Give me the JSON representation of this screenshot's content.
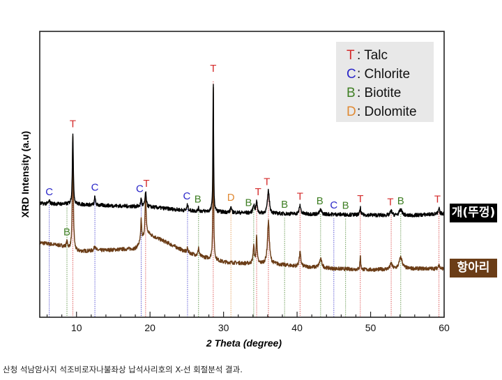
{
  "chart_data": {
    "type": "line",
    "xlabel": "2 Theta (degree)",
    "ylabel": "XRD Intensity (a.u)",
    "xlim": [
      5,
      60
    ],
    "ylim": [
      0,
      100
    ],
    "xticks": [
      10,
      20,
      30,
      40,
      50,
      60
    ],
    "grid": false,
    "legend": {
      "position": "top-right",
      "entries": [
        {
          "code": "T",
          "name": ": Talc",
          "color": "#d42a2a"
        },
        {
          "code": "C",
          "name": ": Chlorite",
          "color": "#2a26c8"
        },
        {
          "code": "B",
          "name": ": Biotite",
          "color": "#3f7f24"
        },
        {
          "code": "D",
          "name": ": Dolomite",
          "color": "#e08a34"
        }
      ]
    },
    "series": [
      {
        "name": "개(뚜껑)",
        "color": "#000000",
        "baseline": [
          [
            5,
            39.8
          ],
          [
            10,
            39.5
          ],
          [
            15,
            39
          ],
          [
            20,
            38.6
          ],
          [
            25,
            37.3
          ],
          [
            30,
            36.8
          ],
          [
            35,
            36.3
          ],
          [
            45,
            36
          ],
          [
            55,
            35.5
          ],
          [
            60,
            36.3
          ]
        ],
        "peaks": [
          [
            6.3,
            1,
            0.2
          ],
          [
            9.5,
            25,
            0.15
          ],
          [
            12.5,
            3,
            0.15
          ],
          [
            18.8,
            3,
            0.15
          ],
          [
            19.4,
            5,
            0.2
          ],
          [
            25.1,
            2,
            0.2
          ],
          [
            26.6,
            1,
            0.15
          ],
          [
            28.6,
            47,
            0.1
          ],
          [
            31.0,
            2,
            0.15
          ],
          [
            34.1,
            3,
            0.25
          ],
          [
            34.5,
            4,
            0.2
          ],
          [
            36.1,
            8,
            0.3
          ],
          [
            40.4,
            3,
            0.25
          ],
          [
            43.2,
            1.5,
            0.3
          ],
          [
            48.6,
            2.5,
            0.15
          ],
          [
            52.8,
            1.5,
            0.3
          ],
          [
            54.1,
            2,
            0.5
          ],
          [
            59.3,
            2,
            0.15
          ]
        ]
      },
      {
        "name": "항아리",
        "color": "#6b3d17",
        "baseline": [
          [
            5,
            26.1
          ],
          [
            8,
            25
          ],
          [
            10,
            23
          ],
          [
            15,
            23.6
          ],
          [
            18,
            24
          ],
          [
            19.8,
            29
          ],
          [
            22,
            26.5
          ],
          [
            25,
            22.7
          ],
          [
            27,
            21.2
          ],
          [
            30,
            19.3
          ],
          [
            33,
            18.8
          ],
          [
            37,
            18.6
          ],
          [
            40,
            17.8
          ],
          [
            45,
            17
          ],
          [
            50,
            16.6
          ],
          [
            55,
            17
          ],
          [
            60,
            17
          ]
        ],
        "peaks": [
          [
            8.7,
            2,
            0.2
          ],
          [
            9.5,
            40,
            0.15
          ],
          [
            12.5,
            2,
            0.2
          ],
          [
            18.8,
            8,
            0.15
          ],
          [
            19.4,
            14,
            0.2
          ],
          [
            25.1,
            1.5,
            0.2
          ],
          [
            26.6,
            3,
            0.15
          ],
          [
            28.6,
            62,
            0.1
          ],
          [
            34.1,
            6,
            0.2
          ],
          [
            34.5,
            10,
            0.15
          ],
          [
            36.1,
            15,
            0.3
          ],
          [
            40.4,
            5,
            0.25
          ],
          [
            43.2,
            3,
            0.4
          ],
          [
            48.6,
            5,
            0.12
          ],
          [
            52.8,
            2,
            0.3
          ],
          [
            54.1,
            4,
            0.5
          ],
          [
            59.3,
            2,
            0.15
          ]
        ]
      }
    ],
    "annotations": [
      {
        "text": "C",
        "x": 6.3,
        "on": 0
      },
      {
        "text": "T",
        "x": 9.5,
        "on": 0
      },
      {
        "text": "B",
        "x": 8.7,
        "on": 1
      },
      {
        "text": "C",
        "x": 12.5,
        "on": 0
      },
      {
        "text": "C",
        "x": 18.6,
        "on": 0
      },
      {
        "text": "T",
        "x": 19.5,
        "on": 0
      },
      {
        "text": "C",
        "x": 25.0,
        "on": 0
      },
      {
        "text": "B",
        "x": 26.5,
        "on": 0
      },
      {
        "text": "T",
        "x": 28.6,
        "on": 0
      },
      {
        "text": "D",
        "x": 31.0,
        "on": 0
      },
      {
        "text": "B",
        "x": 33.4,
        "on": 0
      },
      {
        "text": "T",
        "x": 34.7,
        "on": 0
      },
      {
        "text": "T",
        "x": 35.9,
        "on": 0
      },
      {
        "text": "B",
        "x": 38.3,
        "on": 0
      },
      {
        "text": "T",
        "x": 40.4,
        "on": 0
      },
      {
        "text": "B",
        "x": 43.1,
        "on": 0
      },
      {
        "text": "C",
        "x": 45.0,
        "on": 0
      },
      {
        "text": "B",
        "x": 46.6,
        "on": 0
      },
      {
        "text": "T",
        "x": 48.6,
        "on": 0
      },
      {
        "text": "T",
        "x": 52.7,
        "on": 0
      },
      {
        "text": "B",
        "x": 54.1,
        "on": 0
      },
      {
        "text": "T",
        "x": 59.1,
        "on": 0
      }
    ],
    "reference_lines": [
      {
        "code": "C",
        "x": 6.3
      },
      {
        "code": "B",
        "x": 8.7
      },
      {
        "code": "T",
        "x": 9.5
      },
      {
        "code": "C",
        "x": 12.5
      },
      {
        "code": "C",
        "x": 18.8
      },
      {
        "code": "T",
        "x": 19.4
      },
      {
        "code": "C",
        "x": 25.1
      },
      {
        "code": "B",
        "x": 26.6
      },
      {
        "code": "T",
        "x": 28.6
      },
      {
        "code": "D",
        "x": 31.0
      },
      {
        "code": "B",
        "x": 34.1
      },
      {
        "code": "T",
        "x": 34.5
      },
      {
        "code": "T",
        "x": 36.1
      },
      {
        "code": "B",
        "x": 38.3
      },
      {
        "code": "T",
        "x": 40.4
      },
      {
        "code": "B",
        "x": 43.2
      },
      {
        "code": "C",
        "x": 45.0
      },
      {
        "code": "B",
        "x": 46.6
      },
      {
        "code": "T",
        "x": 48.6
      },
      {
        "code": "T",
        "x": 52.8
      },
      {
        "code": "B",
        "x": 54.1
      },
      {
        "code": "T",
        "x": 59.3
      }
    ]
  },
  "labels": {
    "lid": "개(뚜껑)",
    "jar": "항아리"
  },
  "caption": "산청 석남암사지 석조비로자나불좌상 납석사리호의 X-선 회절분석 결과."
}
